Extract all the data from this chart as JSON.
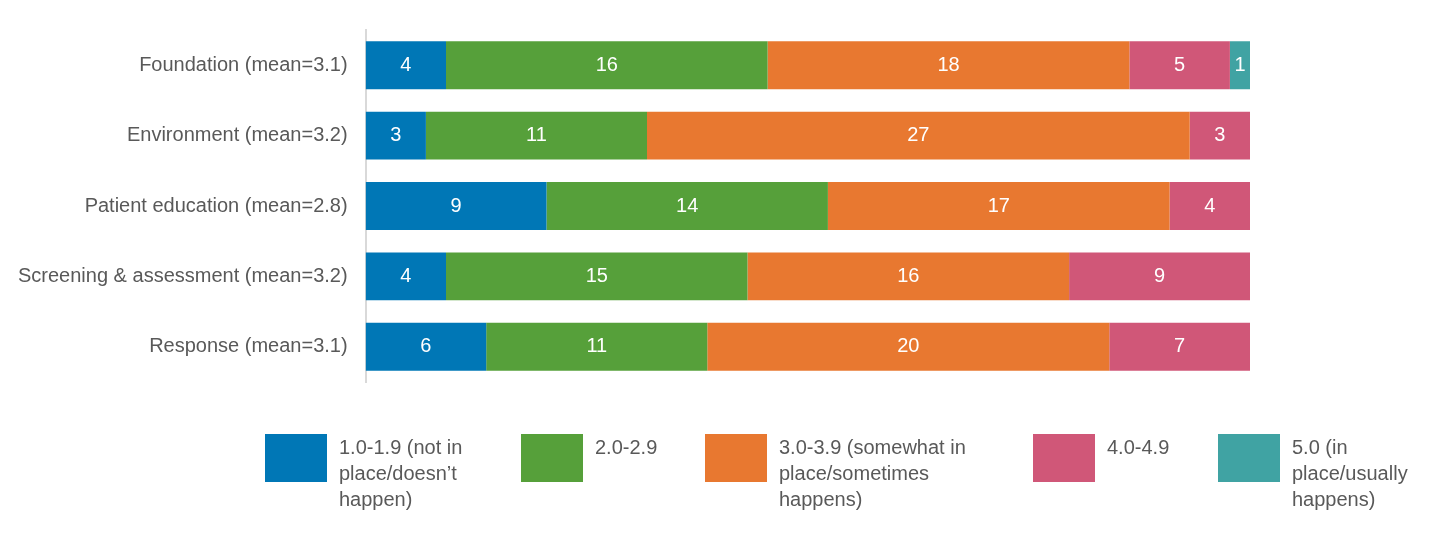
{
  "chart_data": {
    "type": "bar",
    "orientation": "horizontal",
    "stacked": true,
    "data_labels": true,
    "tick_labels": "y",
    "grid": false,
    "legend": "bottom",
    "categories": [
      "Foundation (mean=3.1)",
      "Environment (mean=3.2)",
      "Patient education (mean=2.8)",
      "Screening & assessment (mean=3.2)",
      "Response (mean=3.1)"
    ],
    "series": [
      {
        "name": "1.0-1.9 (not in place/doesn’t happen)",
        "color": "#0077b6",
        "values": [
          4,
          3,
          9,
          4,
          6
        ]
      },
      {
        "name": "2.0-2.9",
        "color": "#56a03a",
        "values": [
          16,
          11,
          14,
          15,
          11
        ]
      },
      {
        "name": "3.0-3.9 (somewhat in place/sometimes happens)",
        "color": "#e87830",
        "values": [
          18,
          27,
          17,
          16,
          20
        ]
      },
      {
        "name": "4.0-4.9",
        "color": "#d05778",
        "values": [
          5,
          3,
          4,
          9,
          7
        ]
      },
      {
        "name": "5.0 (in place/usually happens)",
        "color": "#40a3a3",
        "values": [
          1,
          null,
          null,
          null,
          null
        ]
      }
    ]
  }
}
